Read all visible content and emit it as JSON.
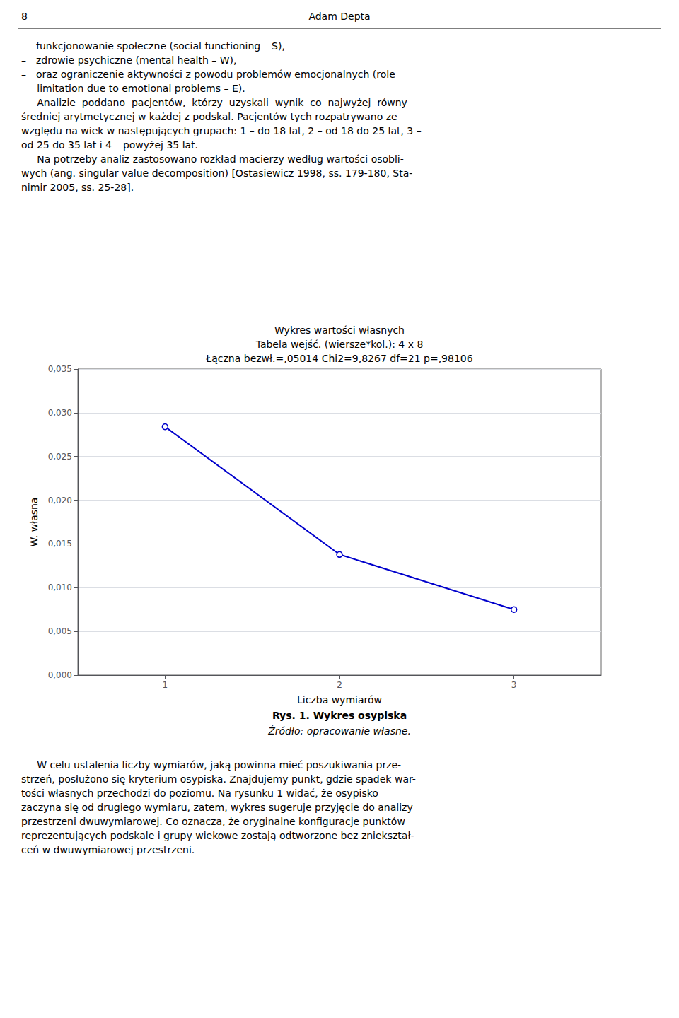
{
  "chart_data": {
    "type": "line",
    "title": "Wykres wartości własnych",
    "subtitle": [
      "Tabela wejść. (wiersze*kol.): 4 x 8",
      "Łączna bezwł.=,05014 Chi2=9,8267 df=21 p=,98106"
    ],
    "x": [
      1,
      2,
      3
    ],
    "values": [
      0.0284,
      0.0138,
      0.0075
    ],
    "xlabel": "Liczba wymiarów",
    "ylabel": "W. własna",
    "xlim": [
      0.5,
      3.5
    ],
    "xticks": [
      1,
      2,
      3
    ],
    "ylim": [
      0.0,
      0.035
    ],
    "yticks": [
      {
        "value": 0.0,
        "label": "0,000"
      },
      {
        "value": 0.005,
        "label": "0,005"
      },
      {
        "value": 0.01,
        "label": "0,010"
      },
      {
        "value": 0.015,
        "label": "0,015"
      },
      {
        "value": 0.02,
        "label": "0,020"
      },
      {
        "value": 0.025,
        "label": "0,025"
      },
      {
        "value": 0.03,
        "label": "0,030"
      },
      {
        "value": 0.035,
        "label": "0,035"
      }
    ],
    "grid": true,
    "color": "#0000CC",
    "marker": "circle",
    "annotations": [
      [
        "8",
        "Adam Depta"
      ],
      [
        "– funkcjonowanie społeczne (social functioning – S),",
        "– zdrowie psychiczne (mental health – W),",
        "– oraz ograniczenie aktywności z powodu problemów emocjonalnych (role",
        "     limitation due to emotional problems – E).",
        "     Analizie  poddano  pacjentów,  którzy  uzyskali  wynik  co  najwyżej  równy",
        "średniej arytmetycznej w każdej z podskal. Pacjentów tych rozpatrywano ze",
        "względu na wiek w następujących grupach: 1 – do 18 lat, 2 – od 18 do 25 lat, 3 –",
        "od 25 do 35 lat i 4 – powyżej 35 lat.",
        "     Na potrzeby analiz zastosowano rozkład macierzy według wartości osobli-",
        "wych (ang. singular value decomposition) [Ostasiewicz 1998, ss. 179-180, Sta-",
        "nimir 2005, ss. 25-28]."
      ],
      [
        "Rys. 1. Wykres osypiska",
        "Źródło: opracowanie własne."
      ],
      [
        "     W celu ustalenia liczby wymiarów, jaką powinna mieć poszukiwania prze-",
        "strzeń, posłużono się kryterium osypiska. Znajdujemy punkt, gdzie spadek war-",
        "tości własnych przechodzi do poziomu. Na rysunku 1 widać, że osypisko",
        "zaczyna się od drugiego wymiaru, zatem, wykres sugeruje przyjęcie do analizy",
        "przestrzeni dwuwymiarowej. Co oznacza, że oryginalne konfiguracje punktów",
        "reprezentujących podskale i grupy wiekowe zostają odtworzone bez zniekształ-",
        "ceń w dwuwymiarowej przestrzeni."
      ]
    ]
  }
}
